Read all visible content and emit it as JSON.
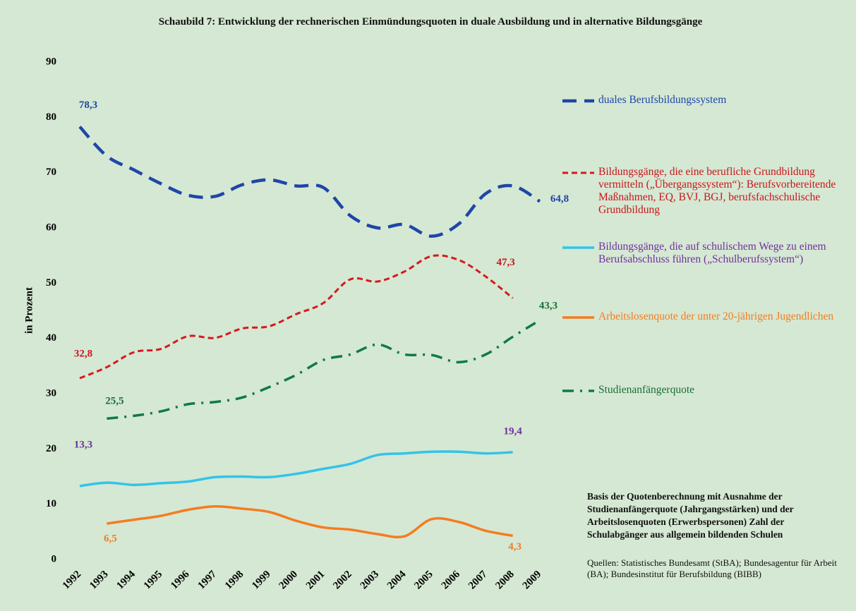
{
  "chart_data": {
    "type": "line",
    "title": "Schaubild 7: Entwicklung der rechnerischen Einmündungsquoten in duale Ausbildung und in alternative Bildungsgänge",
    "y_label": "in Prozent",
    "categories": [
      "1992",
      "1993",
      "1994",
      "1995",
      "1996",
      "1997",
      "1998",
      "1999",
      "2000",
      "2001",
      "2002",
      "2003",
      "2004",
      "2005",
      "2006",
      "2007",
      "2008",
      "2009"
    ],
    "ylim": [
      0,
      90
    ],
    "yticks": [
      0,
      10,
      20,
      30,
      40,
      50,
      60,
      70,
      80,
      90
    ],
    "grid": false,
    "legend": "right",
    "series": [
      {
        "name": "duales Berufsbildungssystem",
        "color": "#1f46a8",
        "label_color": "#1f46a8",
        "line_style": "dashed",
        "values": [
          78.3,
          73,
          70.5,
          68,
          65.9,
          65.7,
          67.8,
          68.7,
          67.6,
          67.3,
          62.2,
          60,
          60.6,
          58.5,
          60.7,
          66.2,
          67.6,
          64.8
        ],
        "value_labels": [
          "78,3",
          null,
          null,
          null,
          null,
          null,
          null,
          null,
          null,
          null,
          null,
          null,
          null,
          null,
          null,
          null,
          null,
          "64,8"
        ]
      },
      {
        "name": "Bildungsgänge, die eine berufliche Grundbildung vermitteln („Übergangssystem“): Berufsvorbereitende Maßnahmen, EQ, BVJ, BGJ, berufsfachschulische Grundbildung",
        "color": "#d7191c",
        "label_color": "#c8161b",
        "line_style": "short-dashed",
        "values": [
          32.8,
          34.8,
          37.5,
          38.1,
          40.4,
          40.1,
          41.8,
          42.2,
          44.4,
          46.4,
          50.7,
          50.3,
          52.1,
          54.9,
          54.2,
          51.2,
          47.3,
          null
        ],
        "value_labels": [
          "32,8",
          null,
          null,
          null,
          null,
          null,
          null,
          null,
          null,
          null,
          null,
          null,
          null,
          null,
          null,
          null,
          "47,3",
          null
        ]
      },
      {
        "name": "Bildungsgänge, die auf schulischem Wege zu einem Berufsabschluss führen („Schulberufssystem“)",
        "color": "#33c3ea",
        "label_color": "#7030a0",
        "line_style": "solid",
        "values": [
          13.3,
          13.9,
          13.5,
          13.8,
          14.1,
          14.9,
          15,
          14.9,
          15.5,
          16.4,
          17.3,
          18.9,
          19.2,
          19.5,
          19.5,
          19.2,
          19.4,
          null
        ],
        "value_labels": [
          "13,3",
          null,
          null,
          null,
          null,
          null,
          null,
          null,
          null,
          null,
          null,
          null,
          null,
          null,
          null,
          null,
          "19,4",
          null
        ]
      },
      {
        "name": "Arbeitslosenquote der unter 20-jährigen Jugendlichen",
        "color": "#f47c20",
        "label_color": "#f47c20",
        "line_style": "solid",
        "values": [
          null,
          6.5,
          7.2,
          7.9,
          9.0,
          9.6,
          9.2,
          8.6,
          7.0,
          5.8,
          5.4,
          4.6,
          4.2,
          7.3,
          6.8,
          5.2,
          4.3,
          null
        ],
        "value_labels": [
          null,
          "6,5",
          null,
          null,
          null,
          null,
          null,
          null,
          null,
          null,
          null,
          null,
          null,
          null,
          null,
          null,
          "4,3",
          null
        ]
      },
      {
        "name": "Studienanfängerquote",
        "color": "#0f7a45",
        "label_color": "#1a6e3a",
        "line_style": "dash-dot",
        "values": [
          null,
          25.5,
          26,
          26.8,
          28.1,
          28.5,
          29.3,
          31.2,
          33.4,
          36.1,
          37.1,
          38.9,
          37.1,
          37.0,
          35.7,
          37.1,
          40.3,
          43.3
        ],
        "value_labels": [
          null,
          "25,5",
          null,
          null,
          null,
          null,
          null,
          null,
          null,
          null,
          null,
          null,
          null,
          null,
          null,
          null,
          null,
          "43,3"
        ]
      }
    ],
    "note": "Basis der Quotenberechnung mit Ausnahme der Studienanfängerquote (Jahrgangsstärken) und der Arbeitslosenquoten (Erwerbspersonen) Zahl der Schulabgänger aus allgemein bildenden Schulen",
    "source": "Quellen: Statistisches Bundesamt (StBA); Bundesagentur für Arbeit (BA); Bundesinstitut für Berufsbildung (BIBB)"
  }
}
